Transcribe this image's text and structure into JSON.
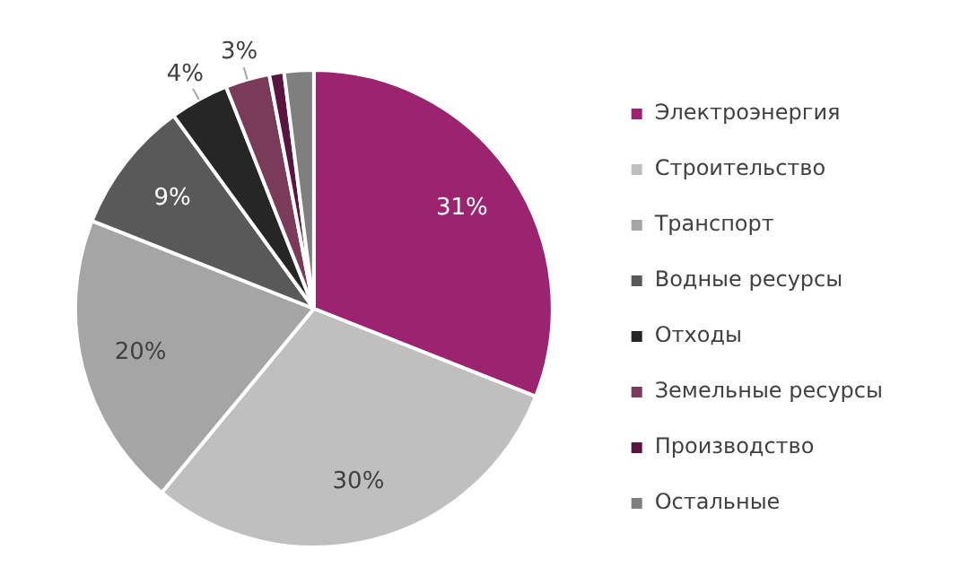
{
  "chart_data": {
    "type": "pie",
    "categories": [
      "Электроэнергия",
      "Строительство",
      "Транспорт",
      "Водные ресурсы",
      "Отходы",
      "Земельные ресурсы",
      "Производство",
      "Остальные"
    ],
    "values": [
      31,
      30,
      20,
      9,
      4,
      3,
      1,
      2
    ],
    "colors": [
      "#9b2370",
      "#bfbfbf",
      "#a5a5a5",
      "#595959",
      "#262626",
      "#7a3a5a",
      "#5a1440",
      "#7f7f7f"
    ],
    "value_labels": [
      "31%",
      "30%",
      "20%",
      "9%",
      "4%",
      "3%",
      null,
      null
    ],
    "legend": "right"
  }
}
